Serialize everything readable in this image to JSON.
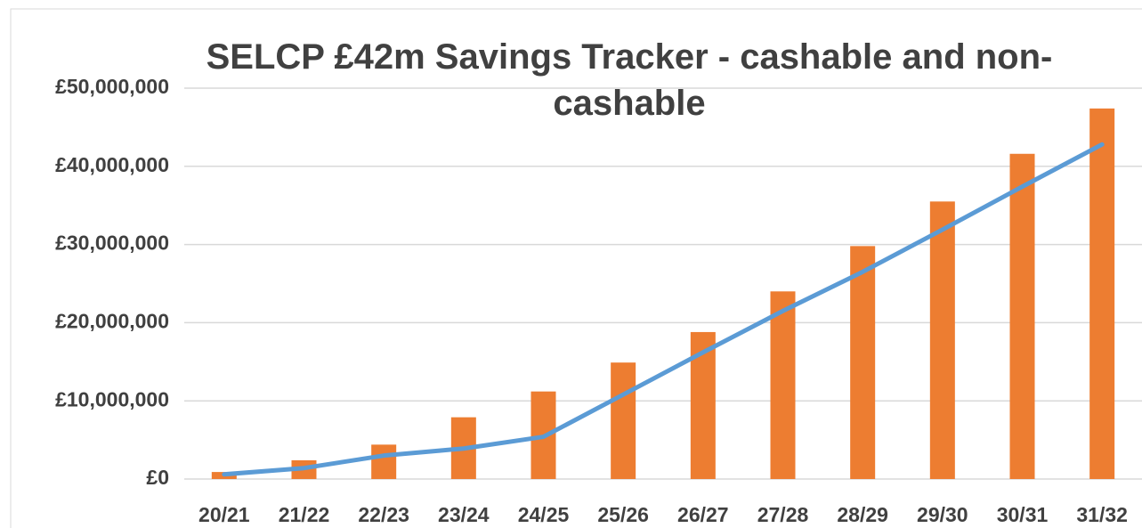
{
  "chart_data": {
    "type": "bar",
    "title": "SELCP £42m Savings Tracker - cashable and non-cashable",
    "categories": [
      "20/21",
      "21/22",
      "22/23",
      "23/24",
      "24/25",
      "25/26",
      "26/27",
      "27/28",
      "28/29",
      "29/30",
      "30/31",
      "31/32"
    ],
    "series": [
      {
        "type": "bar",
        "color": "#ed7d31",
        "values": [
          900000,
          2400000,
          4400000,
          7900000,
          11200000,
          14900000,
          18800000,
          24000000,
          29800000,
          35500000,
          41600000,
          47400000
        ]
      },
      {
        "type": "line",
        "color": "#5b9bd5",
        "values": [
          600000,
          1400000,
          3000000,
          3900000,
          5400000,
          10800000,
          16200000,
          21500000,
          26500000,
          31900000,
          37400000,
          42800000
        ]
      }
    ],
    "ylim": [
      0,
      50000000
    ],
    "yticks": [
      {
        "value": 0,
        "label": "£0"
      },
      {
        "value": 10000000,
        "label": "£10,000,000"
      },
      {
        "value": 20000000,
        "label": "£20,000,000"
      },
      {
        "value": 30000000,
        "label": "£30,000,000"
      },
      {
        "value": 40000000,
        "label": "£40,000,000"
      },
      {
        "value": 50000000,
        "label": "£50,000,000"
      }
    ],
    "grid": true
  }
}
